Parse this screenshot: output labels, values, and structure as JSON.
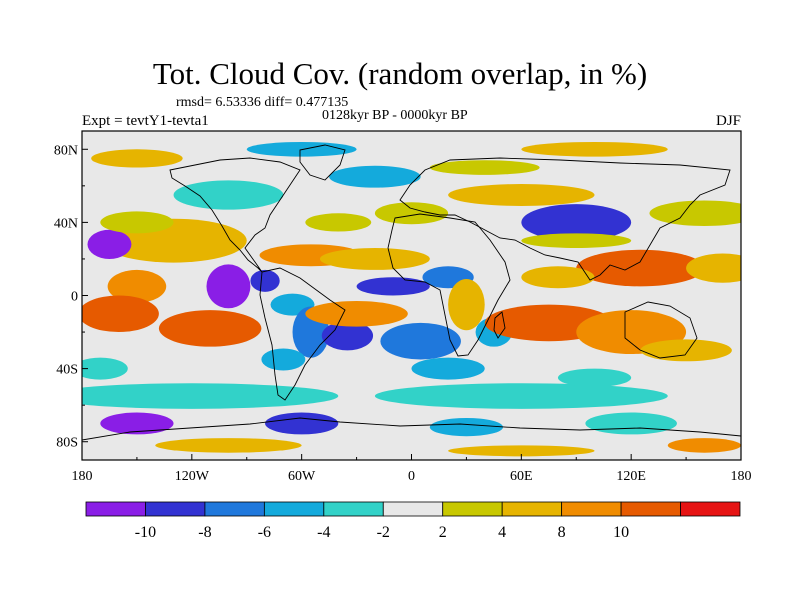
{
  "header": {
    "title": "Tot. Cloud Cov. (random overlap, in %)",
    "stats": "rmsd= 6.53336 diff= 0.477135",
    "period": "0128kyr BP - 0000kyr BP",
    "experiment": "Expt = tevtY1-tevta1",
    "season": "DJF"
  },
  "map": {
    "lat_labels": [
      {
        "lat": 80,
        "label": "80N"
      },
      {
        "lat": 40,
        "label": "40N"
      },
      {
        "lat": 0,
        "label": "0"
      },
      {
        "lat": -40,
        "label": "40S"
      },
      {
        "lat": -80,
        "label": "80S"
      }
    ],
    "lon_labels": [
      {
        "lon": -180,
        "label": "180"
      },
      {
        "lon": -120,
        "label": "120W"
      },
      {
        "lon": -60,
        "label": "60W"
      },
      {
        "lon": 0,
        "label": "0"
      },
      {
        "lon": 60,
        "label": "60E"
      },
      {
        "lon": 120,
        "label": "120E"
      },
      {
        "lon": 180,
        "label": "180"
      }
    ],
    "patches": [
      {
        "lon": -150,
        "lat": 5,
        "rx": 16,
        "ry": 9,
        "value": 9
      },
      {
        "lon": -160,
        "lat": -10,
        "rx": 22,
        "ry": 10,
        "value": 11
      },
      {
        "lon": -110,
        "lat": -18,
        "rx": 28,
        "ry": 10,
        "value": 10
      },
      {
        "lon": -130,
        "lat": 30,
        "rx": 40,
        "ry": 12,
        "value": 6
      },
      {
        "lon": -165,
        "lat": 28,
        "rx": 12,
        "ry": 8,
        "value": -11
      },
      {
        "lon": -150,
        "lat": 40,
        "rx": 20,
        "ry": 6,
        "value": 3
      },
      {
        "lon": -100,
        "lat": 5,
        "rx": 12,
        "ry": 12,
        "value": -11
      },
      {
        "lon": -80,
        "lat": 8,
        "rx": 8,
        "ry": 6,
        "value": -9
      },
      {
        "lon": -65,
        "lat": -5,
        "rx": 12,
        "ry": 6,
        "value": -5
      },
      {
        "lon": -55,
        "lat": -20,
        "rx": 10,
        "ry": 14,
        "value": -7
      },
      {
        "lon": -35,
        "lat": -22,
        "rx": 14,
        "ry": 8,
        "value": -9
      },
      {
        "lon": -70,
        "lat": -35,
        "rx": 12,
        "ry": 6,
        "value": -5
      },
      {
        "lon": -55,
        "lat": 22,
        "rx": 28,
        "ry": 6,
        "value": 9
      },
      {
        "lon": -20,
        "lat": 20,
        "rx": 30,
        "ry": 6,
        "value": 6
      },
      {
        "lon": -40,
        "lat": 40,
        "rx": 18,
        "ry": 5,
        "value": 3
      },
      {
        "lon": 0,
        "lat": 45,
        "rx": 20,
        "ry": 6,
        "value": 3
      },
      {
        "lon": -30,
        "lat": -10,
        "rx": 28,
        "ry": 7,
        "value": 9
      },
      {
        "lon": -10,
        "lat": 5,
        "rx": 20,
        "ry": 5,
        "value": -9
      },
      {
        "lon": 5,
        "lat": -25,
        "rx": 22,
        "ry": 10,
        "value": -7
      },
      {
        "lon": 20,
        "lat": -40,
        "rx": 20,
        "ry": 6,
        "value": -5
      },
      {
        "lon": 20,
        "lat": 10,
        "rx": 14,
        "ry": 6,
        "value": -7
      },
      {
        "lon": 30,
        "lat": -5,
        "rx": 10,
        "ry": 14,
        "value": 6
      },
      {
        "lon": 45,
        "lat": -20,
        "rx": 10,
        "ry": 8,
        "value": -5
      },
      {
        "lon": 75,
        "lat": -15,
        "rx": 35,
        "ry": 10,
        "value": 11
      },
      {
        "lon": 120,
        "lat": -20,
        "rx": 30,
        "ry": 12,
        "value": 9
      },
      {
        "lon": 150,
        "lat": -30,
        "rx": 25,
        "ry": 6,
        "value": 6
      },
      {
        "lon": 90,
        "lat": 40,
        "rx": 30,
        "ry": 10,
        "value": -10
      },
      {
        "lon": 90,
        "lat": 30,
        "rx": 30,
        "ry": 4,
        "value": 3
      },
      {
        "lon": 125,
        "lat": 15,
        "rx": 35,
        "ry": 10,
        "value": 10
      },
      {
        "lon": 80,
        "lat": 10,
        "rx": 20,
        "ry": 6,
        "value": 6
      },
      {
        "lon": 170,
        "lat": 15,
        "rx": 20,
        "ry": 8,
        "value": 6
      },
      {
        "lon": 160,
        "lat": 45,
        "rx": 30,
        "ry": 7,
        "value": 3
      },
      {
        "lon": 60,
        "lat": 55,
        "rx": 40,
        "ry": 6,
        "value": 5
      },
      {
        "lon": -20,
        "lat": 65,
        "rx": 25,
        "ry": 6,
        "value": -5
      },
      {
        "lon": -100,
        "lat": 55,
        "rx": 30,
        "ry": 8,
        "value": -3
      },
      {
        "lon": 40,
        "lat": 70,
        "rx": 30,
        "ry": 4,
        "value": 3
      },
      {
        "lon": -60,
        "lat": 80,
        "rx": 30,
        "ry": 4,
        "value": -5
      },
      {
        "lon": 100,
        "lat": 80,
        "rx": 40,
        "ry": 4,
        "value": 6
      },
      {
        "lon": -150,
        "lat": 75,
        "rx": 25,
        "ry": 5,
        "value": 5
      },
      {
        "lon": -120,
        "lat": -55,
        "rx": 80,
        "ry": 7,
        "value": -3
      },
      {
        "lon": 60,
        "lat": -55,
        "rx": 80,
        "ry": 7,
        "value": -3
      },
      {
        "lon": -150,
        "lat": -70,
        "rx": 20,
        "ry": 6,
        "value": -11
      },
      {
        "lon": -60,
        "lat": -70,
        "rx": 20,
        "ry": 6,
        "value": -9
      },
      {
        "lon": 30,
        "lat": -72,
        "rx": 20,
        "ry": 5,
        "value": -5
      },
      {
        "lon": 120,
        "lat": -70,
        "rx": 25,
        "ry": 6,
        "value": -3
      },
      {
        "lon": 160,
        "lat": -82,
        "rx": 20,
        "ry": 4,
        "value": 9
      },
      {
        "lon": -100,
        "lat": -82,
        "rx": 40,
        "ry": 4,
        "value": 6
      },
      {
        "lon": 60,
        "lat": -85,
        "rx": 40,
        "ry": 3,
        "value": 6
      },
      {
        "lon": -170,
        "lat": -40,
        "rx": 15,
        "ry": 6,
        "value": -3
      },
      {
        "lon": 100,
        "lat": -45,
        "rx": 20,
        "ry": 5,
        "value": -3
      }
    ]
  },
  "legend": {
    "colors": [
      "#8a1ee6",
      "#3232d2",
      "#1f78dc",
      "#14aadc",
      "#32d2c8",
      "#e8e8e8",
      "#c8c800",
      "#e6b400",
      "#f08c00",
      "#e65a00",
      "#e61414"
    ],
    "labels": [
      "-10",
      "-8",
      "-6",
      "-4",
      "-2",
      "2",
      "4",
      "8",
      "10"
    ],
    "thresholds": [
      -10,
      -8,
      -6,
      -4,
      -2,
      2,
      4,
      8,
      10
    ]
  }
}
